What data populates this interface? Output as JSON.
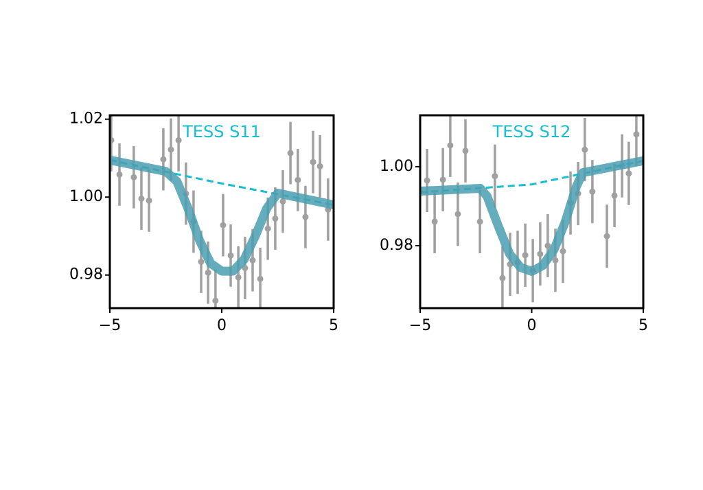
{
  "chart_data": [
    {
      "type": "errorbar",
      "title": "TESS S11",
      "title_color": "#17becf",
      "xlim": [
        -5,
        5
      ],
      "ylim": [
        0.9715,
        1.021
      ],
      "xticks": [
        {
          "value": -5,
          "label": "−5"
        },
        0,
        5
      ],
      "yticks": [
        {
          "value": 0.98,
          "label": "0.98"
        },
        {
          "value": 1.0,
          "label": "1.00"
        },
        {
          "value": 1.02,
          "label": "1.02"
        }
      ],
      "points": {
        "color": "#a0a0a0",
        "x": [
          -4.94,
          -4.57,
          -3.93,
          -3.59,
          -3.25,
          -2.61,
          -2.27,
          -1.93,
          -1.6,
          -1.26,
          -0.92,
          -0.61,
          -0.28,
          0.06,
          0.4,
          0.74,
          1.04,
          1.38,
          1.72,
          2.06,
          2.39,
          2.73,
          3.07,
          3.4,
          3.74,
          4.08,
          4.39,
          4.75
        ],
        "values": [
          1.0146,
          1.0058,
          1.0051,
          0.9996,
          0.9991,
          1.0097,
          1.0122,
          1.0146,
          1.0009,
          0.9937,
          0.9834,
          0.9806,
          0.9734,
          0.9928,
          0.985,
          0.9794,
          0.9818,
          0.9838,
          0.979,
          0.9919,
          0.9945,
          0.9989,
          1.0113,
          1.0044,
          0.9949,
          1.009,
          1.0079,
          0.9968
        ],
        "errors": [
          0.008,
          0.008,
          0.008,
          0.008,
          0.008,
          0.008,
          0.008,
          0.008,
          0.008,
          0.008,
          0.008,
          0.008,
          0.008,
          0.008,
          0.008,
          0.008,
          0.008,
          0.008,
          0.008,
          0.008,
          0.008,
          0.008,
          0.008,
          0.008,
          0.008,
          0.008,
          0.008,
          0.008
        ]
      },
      "model": {
        "color": "#4a9fb0",
        "x": [
          -5,
          -2.5,
          -2,
          -1.5,
          -1,
          -0.5,
          0,
          0.5,
          1,
          1.5,
          2,
          2.5,
          5
        ],
        "values": [
          1.0095,
          1.0066,
          1.004,
          0.997,
          0.989,
          0.983,
          0.981,
          0.981,
          0.984,
          0.99,
          0.997,
          1.001,
          0.998
        ]
      },
      "trend": {
        "color": "#17becf",
        "x": [
          -5,
          0,
          5
        ],
        "values": [
          1.0095,
          1.0035,
          0.998
        ]
      }
    },
    {
      "type": "errorbar",
      "title": "TESS S12",
      "title_color": "#17becf",
      "xlim": [
        -5,
        5
      ],
      "ylim": [
        0.9642,
        1.013
      ],
      "xticks": [
        {
          "value": -5,
          "label": "−5"
        },
        0,
        5
      ],
      "yticks": [
        {
          "value": 0.98,
          "label": "0.98"
        },
        {
          "value": 1.0,
          "label": "1.00"
        }
      ],
      "points": {
        "color": "#a0a0a0",
        "x": [
          -4.69,
          -4.35,
          -3.98,
          -3.65,
          -3.31,
          -2.97,
          -2.32,
          -1.65,
          -1.31,
          -0.97,
          -0.63,
          -0.29,
          0.05,
          0.38,
          0.72,
          1.06,
          1.4,
          1.74,
          2.08,
          2.38,
          2.72,
          3.37,
          3.71,
          4.05,
          4.35,
          4.69
        ],
        "values": [
          0.9965,
          0.9861,
          0.9967,
          1.0054,
          0.988,
          1.004,
          0.9861,
          0.9976,
          0.9718,
          0.9753,
          0.9758,
          0.9776,
          0.9737,
          0.9779,
          0.98,
          0.9763,
          0.9786,
          0.9908,
          0.9932,
          1.0043,
          0.9937,
          0.9824,
          0.9927,
          1.0002,
          0.9983,
          1.0082
        ],
        "errors": [
          0.008,
          0.008,
          0.008,
          0.008,
          0.008,
          0.008,
          0.008,
          0.008,
          0.008,
          0.008,
          0.008,
          0.008,
          0.008,
          0.008,
          0.008,
          0.008,
          0.008,
          0.008,
          0.008,
          0.008,
          0.008,
          0.008,
          0.008,
          0.008,
          0.008,
          0.008
        ]
      },
      "model": {
        "color": "#4a9fb0",
        "x": [
          -5,
          -2.3,
          -2,
          -1.5,
          -1,
          -0.5,
          0,
          0.5,
          1,
          1.5,
          2,
          2.3,
          5
        ],
        "values": [
          0.9938,
          0.9945,
          0.9925,
          0.985,
          0.978,
          0.9745,
          0.9735,
          0.975,
          0.979,
          0.986,
          0.995,
          0.9985,
          1.0015
        ]
      },
      "trend": {
        "color": "#17becf",
        "x": [
          -5,
          0,
          5
        ],
        "values": [
          0.9935,
          0.9955,
          1.0015
        ]
      }
    }
  ]
}
